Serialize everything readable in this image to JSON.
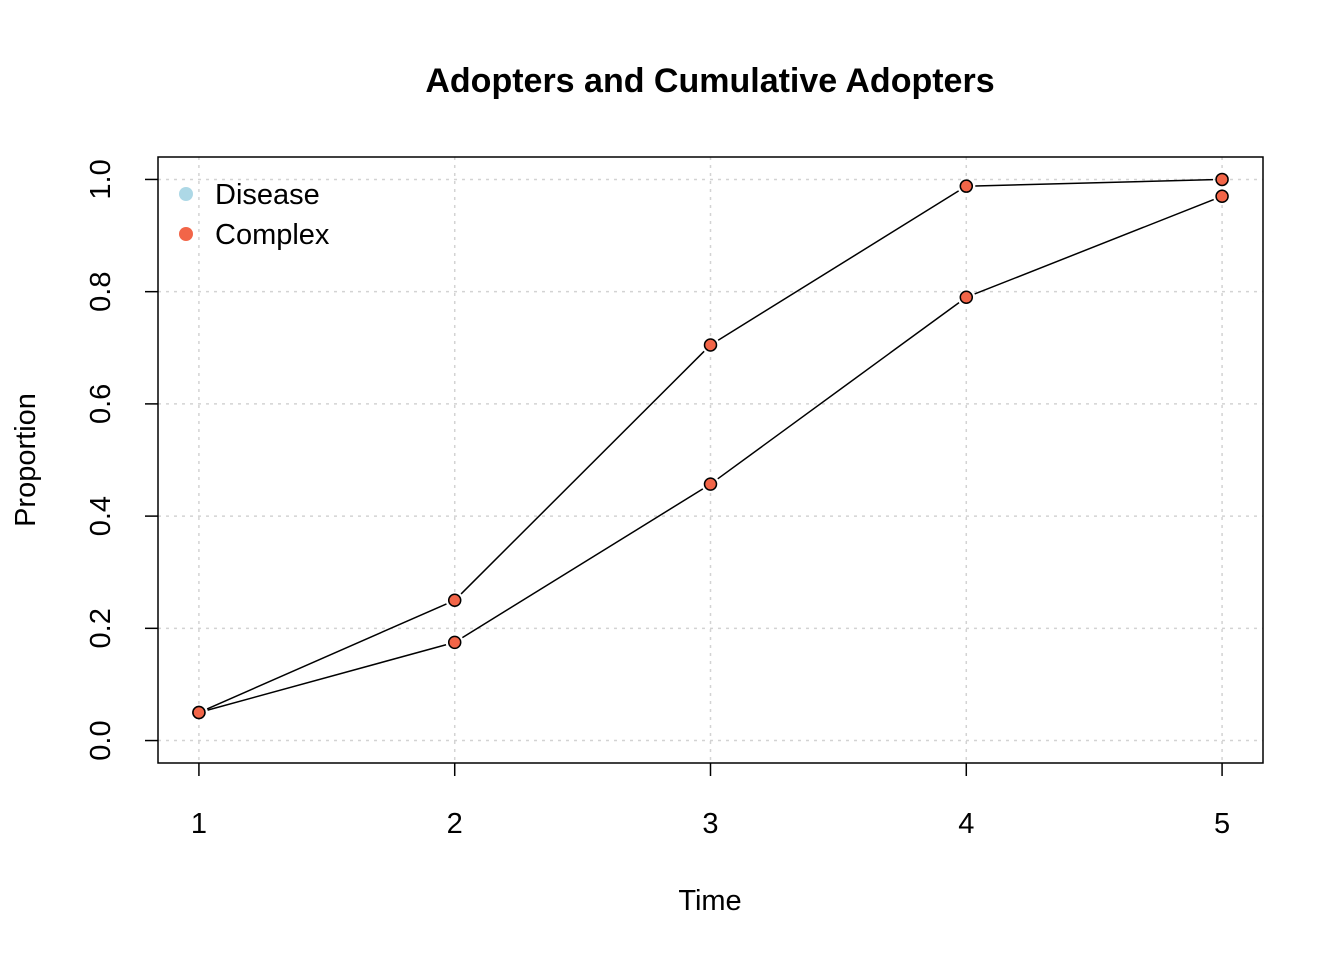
{
  "chart_data": {
    "type": "line",
    "title": "Adopters and Cumulative Adopters",
    "xlabel": "Time",
    "ylabel": "Proportion",
    "x": [
      1,
      2,
      3,
      4,
      5
    ],
    "xticks": [
      "1",
      "2",
      "3",
      "4",
      "5"
    ],
    "yticks": [
      "0.0",
      "0.2",
      "0.4",
      "0.6",
      "0.8",
      "1.0"
    ],
    "xlim": [
      0.84,
      5.16
    ],
    "ylim": [
      -0.04,
      1.04
    ],
    "grid": true,
    "legend_position": "top-left",
    "legend": [
      {
        "label": "Disease",
        "color": "#add8e6"
      },
      {
        "label": "Complex",
        "color": "#f26548"
      }
    ],
    "series": [
      {
        "values": [
          0.05,
          0.25,
          0.705,
          0.988,
          1.0
        ],
        "color": "#f26548"
      },
      {
        "values": [
          0.05,
          0.175,
          0.457,
          0.79,
          0.97
        ],
        "color": "#f26548"
      }
    ]
  }
}
